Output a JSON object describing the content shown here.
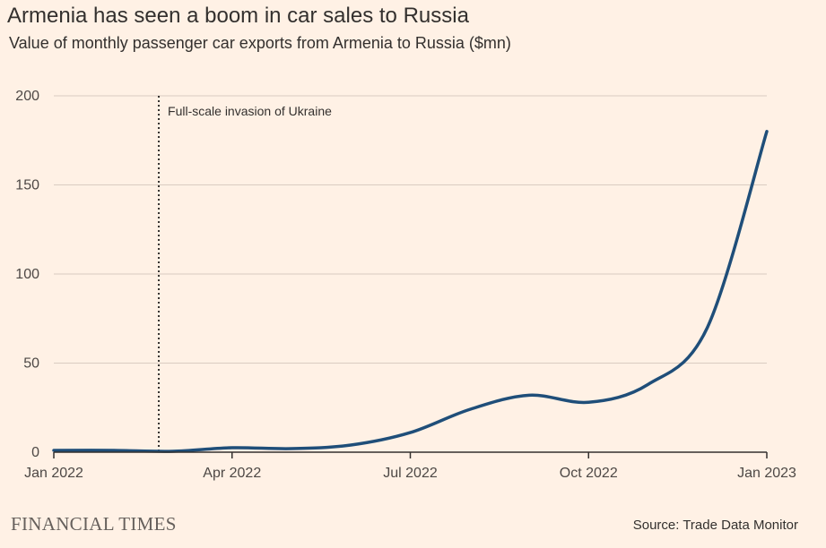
{
  "header": {
    "title": "Armenia has seen a boom in car sales to Russia",
    "subtitle": "Value of monthly passenger car exports from Armenia to Russia ($mn)"
  },
  "footer": {
    "brand": "FINANCIAL TIMES",
    "source": "Source: Trade Data Monitor"
  },
  "colors": {
    "background": "#fff1e5",
    "line": "#1f4e79",
    "grid": "#d9ccc1",
    "axis": "#33302e"
  },
  "chart_data": {
    "type": "line",
    "title": "Armenia has seen a boom in car sales to Russia",
    "subtitle": "Value of monthly passenger car exports from Armenia to Russia ($mn)",
    "xlabel": "",
    "ylabel": "",
    "x_ticks": [
      "Jan 2022",
      "Apr 2022",
      "Jul 2022",
      "Oct 2022",
      "Jan 2023"
    ],
    "y_ticks": [
      0,
      50,
      100,
      150,
      200
    ],
    "ylim": [
      0,
      200
    ],
    "xlim": [
      "2022-01",
      "2023-01"
    ],
    "grid": true,
    "legend": "none",
    "series": [
      {
        "x": [
          "2022-01",
          "2022-02",
          "2022-03",
          "2022-04",
          "2022-05",
          "2022-06",
          "2022-07",
          "2022-08",
          "2022-09",
          "2022-10",
          "2022-11",
          "2022-12",
          "2023-01"
        ],
        "values": [
          1,
          1,
          0.5,
          2.5,
          2,
          4,
          11,
          24,
          32,
          28,
          38,
          70,
          180
        ]
      }
    ],
    "annotations": [
      {
        "x": "2022-02-24",
        "label": "Full-scale invasion of Ukraine",
        "style": "dotted vertical line"
      }
    ]
  }
}
